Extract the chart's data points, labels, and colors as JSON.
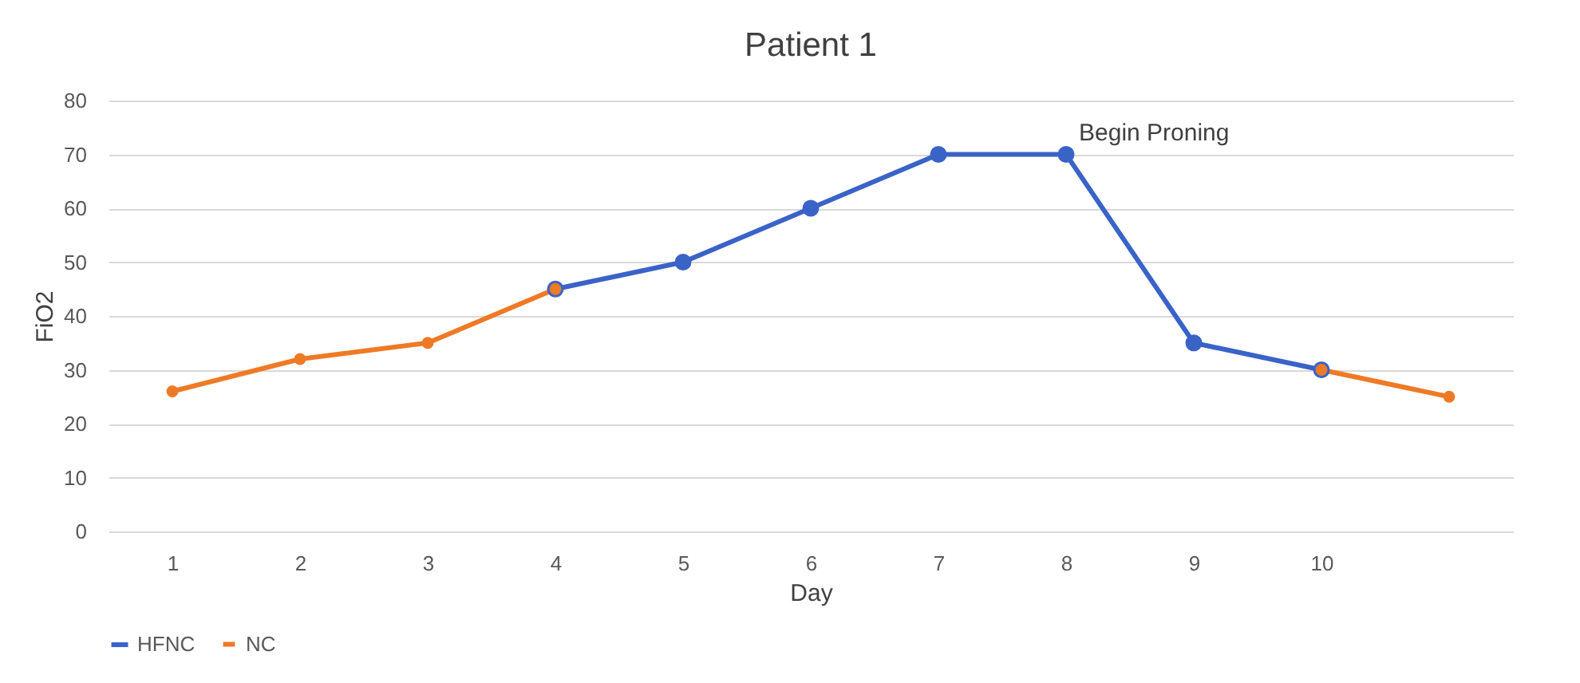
{
  "chart_data": {
    "type": "line",
    "title": "Patient 1",
    "xlabel": "Day",
    "ylabel": "FiO2",
    "categories": [
      "1",
      "2",
      "3",
      "4",
      "5",
      "6",
      "7",
      "8",
      "9",
      "10",
      null
    ],
    "series": [
      {
        "name": "HFNC",
        "color": "#3a63c8",
        "values": [
          null,
          null,
          null,
          45,
          50,
          60,
          70,
          70,
          35,
          30,
          null
        ]
      },
      {
        "name": "NC",
        "color": "#ef7a26",
        "values": [
          26,
          32,
          35,
          45,
          null,
          null,
          null,
          null,
          null,
          30,
          25
        ]
      }
    ],
    "ylim": [
      0,
      80
    ],
    "yticks": [
      0,
      10,
      20,
      30,
      40,
      50,
      60,
      70,
      80
    ],
    "annotations": [
      {
        "text": "Begin Proning",
        "x": "8",
        "y": 70
      }
    ],
    "grid": "y",
    "legend": "bottom",
    "marker": "circle",
    "line_style": "solid"
  }
}
